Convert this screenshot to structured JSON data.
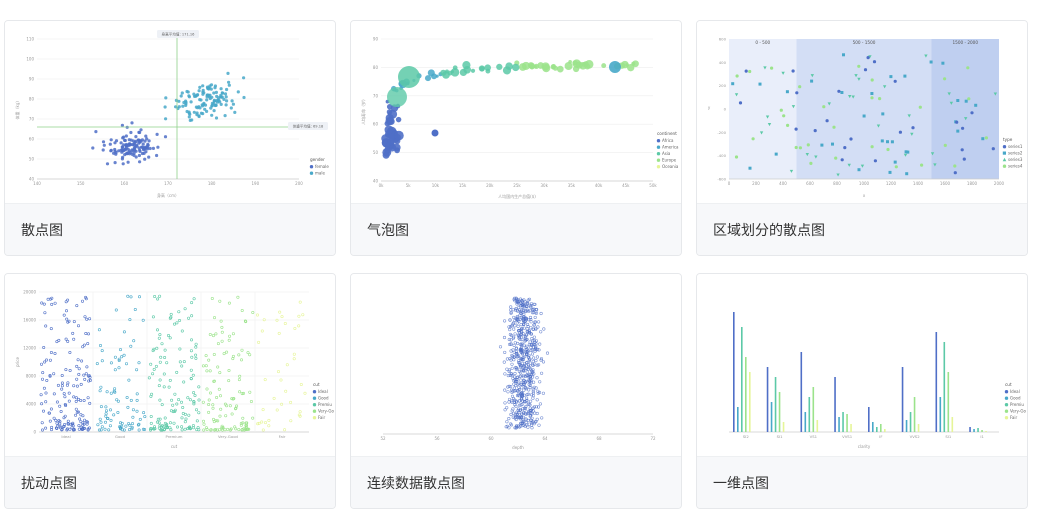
{
  "cards": [
    {
      "title": "散点图",
      "chart_data": {
        "type": "scatter",
        "y_ticks": [
          "110",
          "100",
          "90",
          "80",
          "70",
          "60",
          "50",
          "40"
        ],
        "x_ticks": [
          "140",
          "150",
          "160",
          "170",
          "180",
          "190",
          "200"
        ],
        "xlabel": "身高（cm）",
        "ylabel": "体重（kg）",
        "markline_x_label": "身高平均值: 171.16",
        "markline_y_label": "体重平均值: 69.18",
        "legend_title": "gender",
        "legend": [
          "female",
          "male"
        ]
      }
    },
    {
      "title": "气泡图",
      "chart_data": {
        "type": "scatter",
        "y_ticks": [
          "90",
          "80",
          "70",
          "60",
          "50",
          "40"
        ],
        "x_ticks": [
          "0k",
          "5k",
          "10k",
          "15k",
          "20k",
          "25k",
          "30k",
          "35k",
          "40k",
          "45k",
          "50k"
        ],
        "xlabel": "人均国内生产总值($)",
        "ylabel": "人均寿命（岁）",
        "legend_title": "continent",
        "legend": [
          "Africa",
          "America",
          "Asia",
          "Europe",
          "Oceania"
        ]
      }
    },
    {
      "title": "区域划分的散点图",
      "chart_data": {
        "type": "scatter",
        "regions": [
          "0 - 500",
          "500 - 1500",
          "1500 - 2000"
        ],
        "y_ticks": [
          "600",
          "400",
          "200",
          "0",
          "-200",
          "-400",
          "-600"
        ],
        "x_ticks": [
          "0",
          "200",
          "400",
          "600",
          "800",
          "1000",
          "1200",
          "1400",
          "1600",
          "1800",
          "2000"
        ],
        "xlabel": "x",
        "ylabel": "y",
        "legend_title": "type",
        "legend": [
          "series1",
          "series2",
          "series3",
          "series4"
        ]
      }
    },
    {
      "title": "扰动点图",
      "chart_data": {
        "type": "scatter",
        "y_ticks": [
          "20000",
          "16000",
          "12000",
          "8000",
          "4000",
          "0"
        ],
        "x_ticks": [
          "Ideal",
          "Good",
          "Premium",
          "Very-Good",
          "Fair"
        ],
        "xlabel": "cut",
        "ylabel": "price",
        "legend_title": "cut",
        "legend": [
          "Ideal",
          "Good",
          "Premiu",
          "Very-Go",
          "Fair"
        ]
      }
    },
    {
      "title": "连续数据散点图",
      "chart_data": {
        "type": "scatter",
        "x_ticks": [
          "52",
          "56",
          "60",
          "64",
          "68",
          "72"
        ],
        "xlabel": "depth"
      }
    },
    {
      "title": "一维点图",
      "chart_data": {
        "type": "bar",
        "x_ticks": [
          "SI2",
          "SI1",
          "VS1",
          "VVS1",
          "IF",
          "VVS2",
          "SI1",
          "I1"
        ],
        "xlabel": "clarity",
        "legend_title": "cut",
        "legend": [
          "Ideal",
          "Good",
          "Premiu",
          "Very-Go",
          "Fair"
        ]
      }
    }
  ],
  "colors": {
    "c1": "#4f6fc7",
    "c2": "#48a8c9",
    "c3": "#5cc9a7",
    "c4": "#9be38b",
    "c5": "#e6f598",
    "axis": "#cccccc",
    "grid": "#eeeeee",
    "tick": "#999999"
  }
}
